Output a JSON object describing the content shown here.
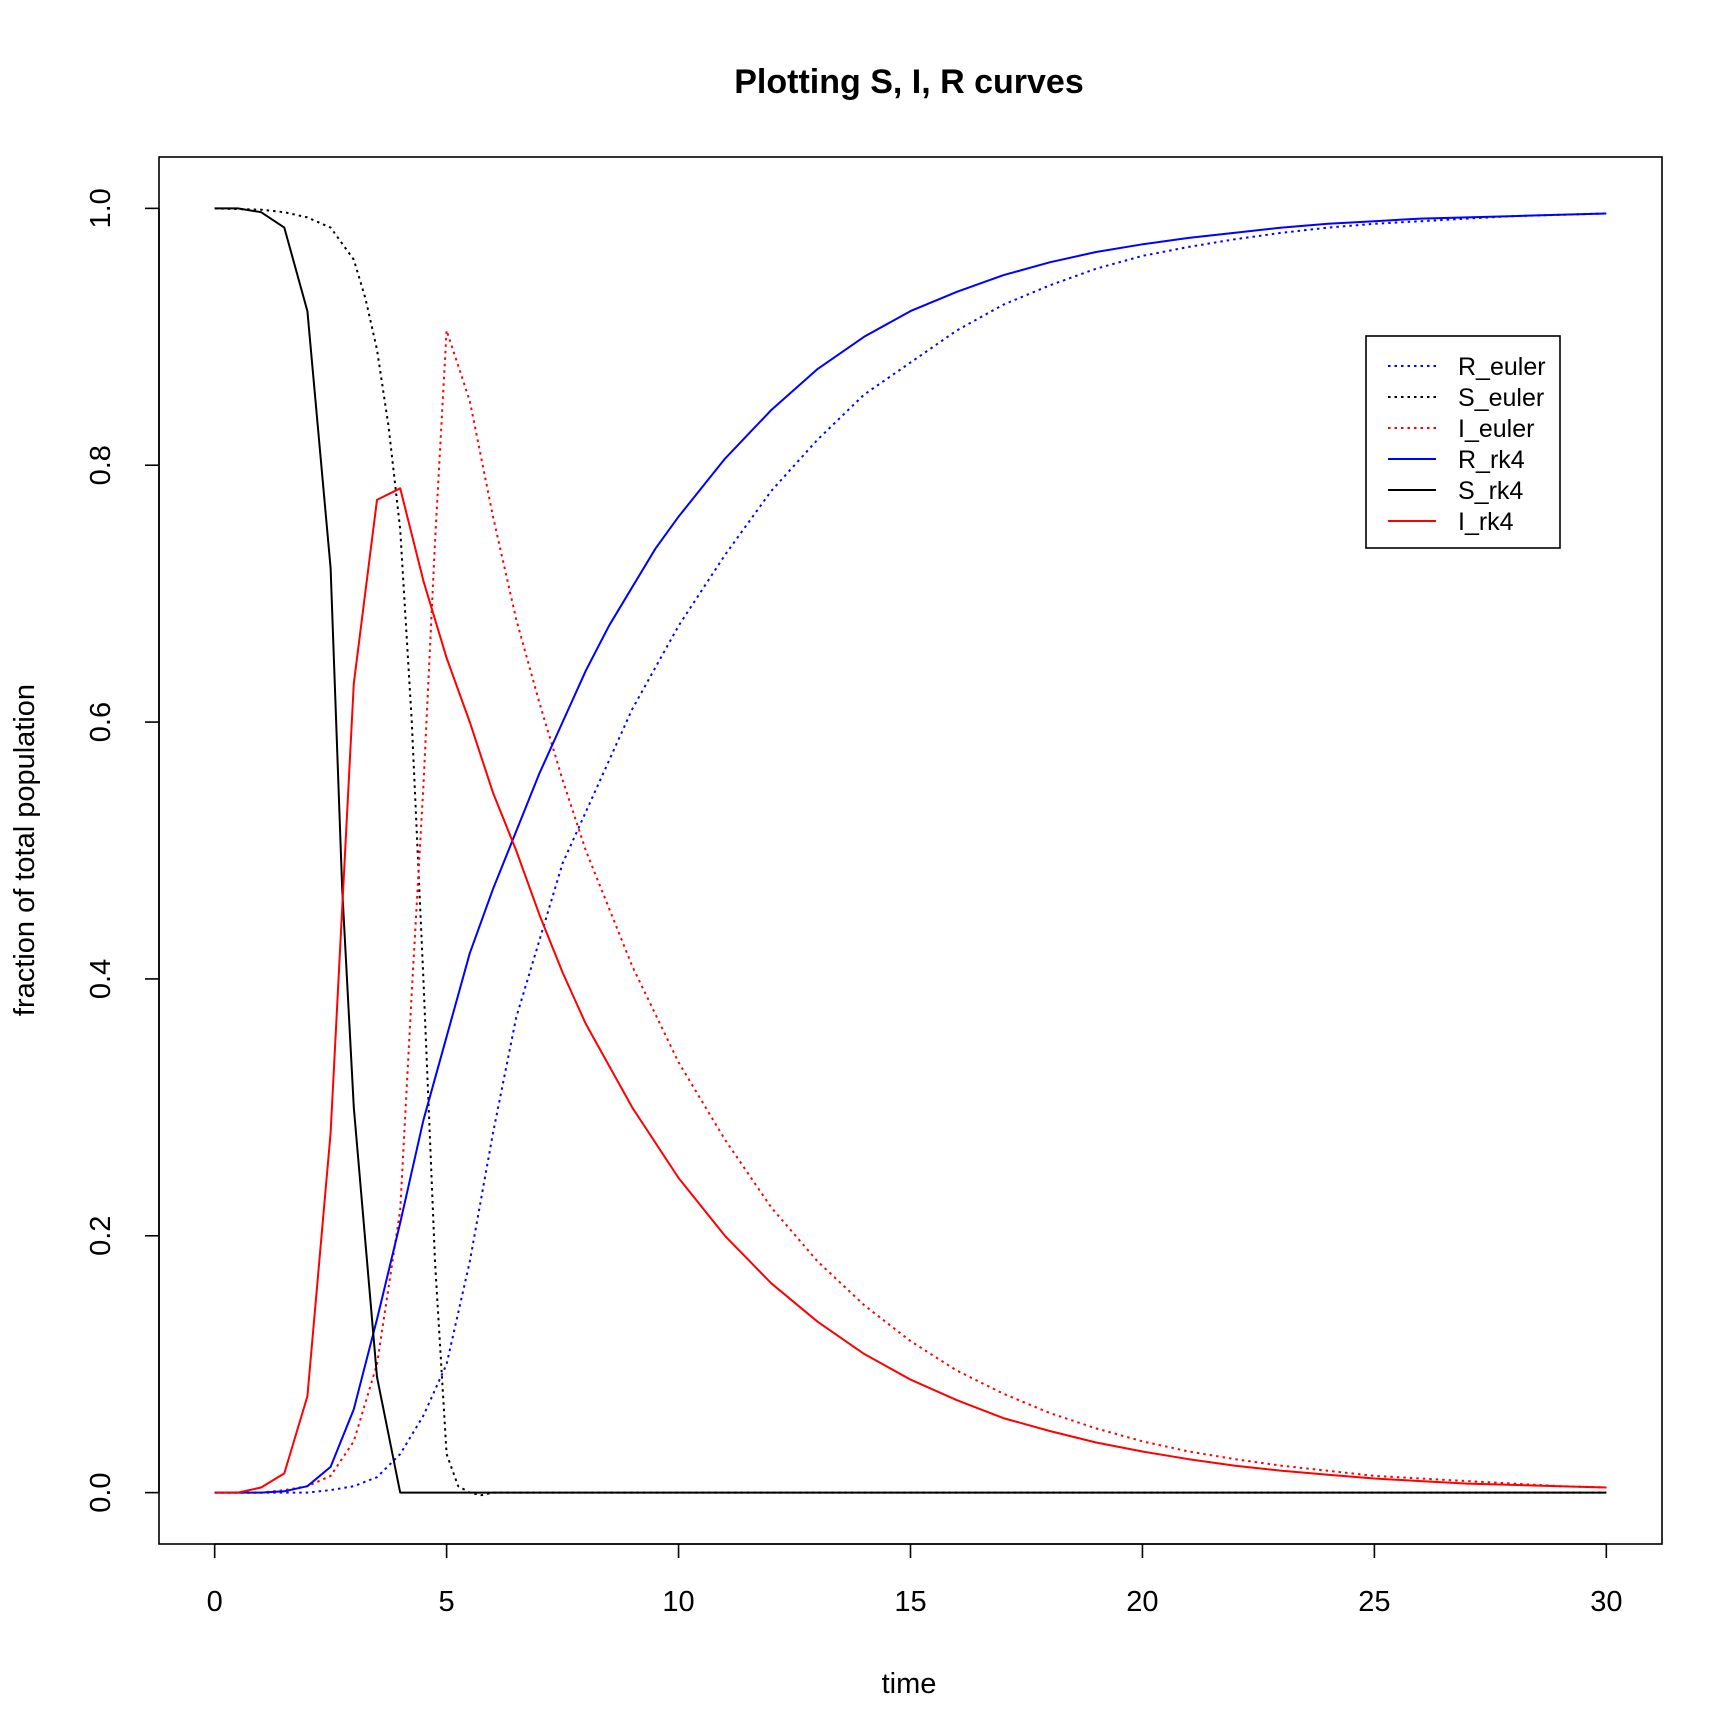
{
  "chart_data": {
    "type": "line",
    "title": "Plotting S, I, R curves",
    "xlabel": "time",
    "ylabel": "fraction of total population",
    "xlim": [
      -1.2,
      31.2
    ],
    "ylim": [
      -0.04,
      1.04
    ],
    "xticks": [
      0,
      5,
      10,
      15,
      20,
      25,
      30
    ],
    "yticks": [
      0.0,
      0.2,
      0.4,
      0.6,
      0.8,
      1.0
    ],
    "xtick_labels": [
      "0",
      "5",
      "10",
      "15",
      "20",
      "25",
      "30"
    ],
    "ytick_labels": [
      "0.0",
      "0.2",
      "0.4",
      "0.6",
      "0.8",
      "1.0"
    ],
    "grid": false,
    "legend_position": "top-right",
    "series": [
      {
        "name": "R_euler",
        "color": "#0000ff",
        "dash": "dotted",
        "points": [
          [
            0,
            0
          ],
          [
            1,
            0
          ],
          [
            2,
            0
          ],
          [
            2.5,
            0.002
          ],
          [
            3,
            0.005
          ],
          [
            3.5,
            0.012
          ],
          [
            4,
            0.03
          ],
          [
            4.5,
            0.06
          ],
          [
            5,
            0.1
          ],
          [
            5.5,
            0.18
          ],
          [
            6,
            0.28
          ],
          [
            6.5,
            0.37
          ],
          [
            7,
            0.43
          ],
          [
            7.5,
            0.49
          ],
          [
            8,
            0.53
          ],
          [
            9,
            0.61
          ],
          [
            10,
            0.675
          ],
          [
            11,
            0.73
          ],
          [
            12,
            0.78
          ],
          [
            13,
            0.82
          ],
          [
            14,
            0.855
          ],
          [
            15,
            0.88
          ],
          [
            16,
            0.905
          ],
          [
            17,
            0.925
          ],
          [
            18,
            0.94
          ],
          [
            19,
            0.953
          ],
          [
            20,
            0.963
          ],
          [
            21,
            0.97
          ],
          [
            22,
            0.976
          ],
          [
            23,
            0.981
          ],
          [
            24,
            0.985
          ],
          [
            25,
            0.988
          ],
          [
            26,
            0.99
          ],
          [
            27,
            0.992
          ],
          [
            28,
            0.994
          ],
          [
            29,
            0.995
          ],
          [
            30,
            0.996
          ]
        ]
      },
      {
        "name": "S_euler",
        "color": "#000000",
        "dash": "dotted",
        "points": [
          [
            0,
            1
          ],
          [
            1,
            0.999
          ],
          [
            1.5,
            0.997
          ],
          [
            2,
            0.993
          ],
          [
            2.5,
            0.985
          ],
          [
            3,
            0.96
          ],
          [
            3.25,
            0.93
          ],
          [
            3.5,
            0.89
          ],
          [
            3.75,
            0.83
          ],
          [
            4,
            0.75
          ],
          [
            4.25,
            0.6
          ],
          [
            4.5,
            0.4
          ],
          [
            4.75,
            0.18
          ],
          [
            5,
            0.03
          ],
          [
            5.25,
            0.005
          ],
          [
            5.5,
            0.0
          ],
          [
            5.75,
            -0.002
          ],
          [
            6,
            0
          ],
          [
            30,
            0
          ]
        ]
      },
      {
        "name": "I_euler",
        "color": "#ff0000",
        "dash": "dotted",
        "points": [
          [
            0,
            0
          ],
          [
            1,
            0
          ],
          [
            1.5,
            0.002
          ],
          [
            2,
            0.005
          ],
          [
            2.5,
            0.013
          ],
          [
            3,
            0.04
          ],
          [
            3.5,
            0.1
          ],
          [
            4,
            0.22
          ],
          [
            4.25,
            0.39
          ],
          [
            4.5,
            0.55
          ],
          [
            4.75,
            0.74
          ],
          [
            5,
            0.905
          ],
          [
            5.5,
            0.85
          ],
          [
            6,
            0.76
          ],
          [
            6.5,
            0.68
          ],
          [
            7,
            0.615
          ],
          [
            7.5,
            0.555
          ],
          [
            8,
            0.5
          ],
          [
            9,
            0.41
          ],
          [
            10,
            0.335
          ],
          [
            11,
            0.275
          ],
          [
            12,
            0.222
          ],
          [
            13,
            0.18
          ],
          [
            14,
            0.146
          ],
          [
            15,
            0.118
          ],
          [
            16,
            0.095
          ],
          [
            17,
            0.077
          ],
          [
            18,
            0.062
          ],
          [
            19,
            0.05
          ],
          [
            20,
            0.04
          ],
          [
            21,
            0.032
          ],
          [
            22,
            0.026
          ],
          [
            23,
            0.021
          ],
          [
            24,
            0.017
          ],
          [
            25,
            0.013
          ],
          [
            26,
            0.011
          ],
          [
            27,
            0.009
          ],
          [
            28,
            0.007
          ],
          [
            29,
            0.005
          ],
          [
            30,
            0.004
          ]
        ]
      },
      {
        "name": "R_rk4",
        "color": "#0000ff",
        "dash": "solid",
        "points": [
          [
            0,
            0
          ],
          [
            1,
            0.0
          ],
          [
            1.5,
            0.001
          ],
          [
            2,
            0.005
          ],
          [
            2.5,
            0.02
          ],
          [
            3,
            0.065
          ],
          [
            3.5,
            0.135
          ],
          [
            4,
            0.21
          ],
          [
            4.5,
            0.29
          ],
          [
            5,
            0.355
          ],
          [
            5.5,
            0.42
          ],
          [
            6,
            0.47
          ],
          [
            6.5,
            0.515
          ],
          [
            7,
            0.56
          ],
          [
            7.5,
            0.6
          ],
          [
            8,
            0.64
          ],
          [
            8.5,
            0.675
          ],
          [
            9,
            0.705
          ],
          [
            9.5,
            0.735
          ],
          [
            10,
            0.76
          ],
          [
            11,
            0.805
          ],
          [
            12,
            0.843
          ],
          [
            13,
            0.875
          ],
          [
            14,
            0.9
          ],
          [
            15,
            0.92
          ],
          [
            16,
            0.935
          ],
          [
            17,
            0.948
          ],
          [
            18,
            0.958
          ],
          [
            19,
            0.966
          ],
          [
            20,
            0.972
          ],
          [
            21,
            0.977
          ],
          [
            22,
            0.981
          ],
          [
            23,
            0.985
          ],
          [
            24,
            0.988
          ],
          [
            25,
            0.99
          ],
          [
            26,
            0.992
          ],
          [
            27,
            0.993
          ],
          [
            28,
            0.994
          ],
          [
            29,
            0.995
          ],
          [
            30,
            0.996
          ]
        ]
      },
      {
        "name": "S_rk4",
        "color": "#000000",
        "dash": "solid",
        "points": [
          [
            0,
            1
          ],
          [
            0.5,
            1.0
          ],
          [
            1,
            0.997
          ],
          [
            1.5,
            0.985
          ],
          [
            2,
            0.92
          ],
          [
            2.5,
            0.72
          ],
          [
            2.75,
            0.47
          ],
          [
            3,
            0.3
          ],
          [
            3.5,
            0.09
          ],
          [
            4,
            0
          ],
          [
            30,
            0
          ]
        ]
      },
      {
        "name": "I_rk4",
        "color": "#ff0000",
        "dash": "solid",
        "points": [
          [
            0,
            0
          ],
          [
            0.5,
            0.0
          ],
          [
            1,
            0.004
          ],
          [
            1.5,
            0.015
          ],
          [
            2,
            0.075
          ],
          [
            2.5,
            0.28
          ],
          [
            3,
            0.63
          ],
          [
            3.5,
            0.773
          ],
          [
            4,
            0.782
          ],
          [
            4.5,
            0.71
          ],
          [
            5,
            0.65
          ],
          [
            5.5,
            0.6
          ],
          [
            6,
            0.545
          ],
          [
            6.5,
            0.5
          ],
          [
            7,
            0.45
          ],
          [
            7.5,
            0.405
          ],
          [
            8,
            0.365
          ],
          [
            9,
            0.3
          ],
          [
            10,
            0.245
          ],
          [
            11,
            0.2
          ],
          [
            12,
            0.163
          ],
          [
            13,
            0.133
          ],
          [
            14,
            0.108
          ],
          [
            15,
            0.088
          ],
          [
            16,
            0.072
          ],
          [
            17,
            0.058
          ],
          [
            18,
            0.048
          ],
          [
            19,
            0.039
          ],
          [
            20,
            0.032
          ],
          [
            21,
            0.026
          ],
          [
            22,
            0.021
          ],
          [
            23,
            0.017
          ],
          [
            24,
            0.014
          ],
          [
            25,
            0.011
          ],
          [
            26,
            0.009
          ],
          [
            27,
            0.007
          ],
          [
            28,
            0.006
          ],
          [
            29,
            0.005
          ],
          [
            30,
            0.004
          ]
        ]
      }
    ]
  }
}
